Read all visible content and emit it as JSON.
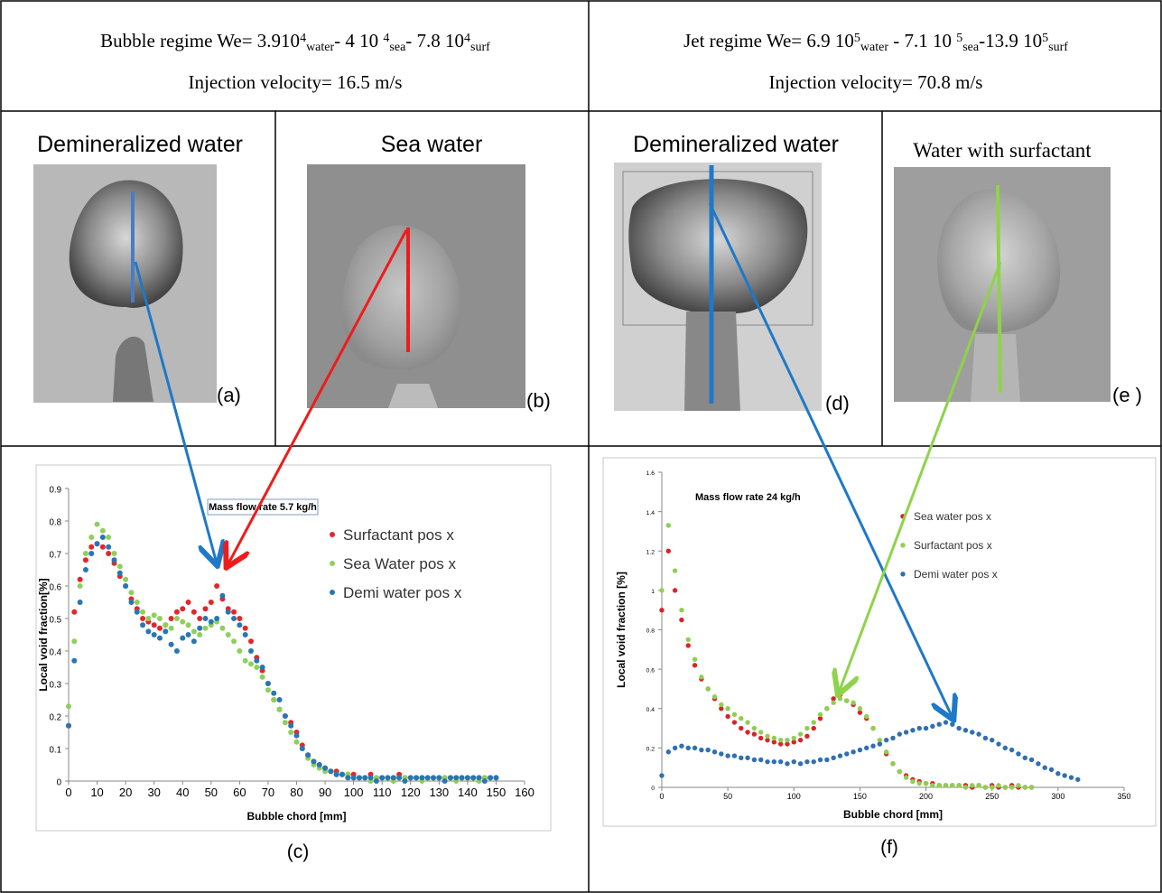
{
  "header": {
    "left": {
      "line1": [
        {
          "text": "Bubble regime We= 3.910"
        },
        {
          "sup": "4"
        },
        {
          "sub": "water"
        },
        {
          "text": "- 4 10 "
        },
        {
          "sup": "4"
        },
        {
          "sub": "sea"
        },
        {
          "text": "- 7.8 10"
        },
        {
          "sup": "4"
        },
        {
          "sub": "surf"
        }
      ],
      "line2": "Injection velocity= 16.5 m/s"
    },
    "right": {
      "line1": [
        {
          "text": "Jet regime We= 6.9 10"
        },
        {
          "sup": "5"
        },
        {
          "sub": "water"
        },
        {
          "text": " - 7.1 10 "
        },
        {
          "sup": "5"
        },
        {
          "sub": "sea"
        },
        {
          "text": "-13.9 10"
        },
        {
          "sup": "5"
        },
        {
          "sub": "surf"
        }
      ],
      "line2": "Injection velocity= 70.8 m/s"
    }
  },
  "panels": [
    {
      "title": "Demineralized water",
      "label": "(a)"
    },
    {
      "title": "Sea water",
      "label": "(b)"
    },
    {
      "title": "Demineralized water",
      "label": "(d)"
    },
    {
      "title": "Water with surfactant",
      "label": "(e )"
    }
  ],
  "chart_data": [
    {
      "type": "scatter",
      "title": "Mass flow rate 5.7 kg/h",
      "xlabel": "Bubble chord [mm]",
      "ylabel": "Local void fraction[%]",
      "caption": "(c)",
      "xlim": [
        0,
        160
      ],
      "ylim": [
        0,
        0.9
      ],
      "xticks": [
        0,
        10,
        20,
        30,
        40,
        50,
        60,
        70,
        80,
        90,
        100,
        110,
        120,
        130,
        140,
        150,
        160
      ],
      "yticks": [
        0,
        0.1,
        0.2,
        0.3,
        0.4,
        0.5,
        0.6,
        0.7,
        0.8,
        0.9
      ],
      "x": [
        0,
        2,
        4,
        6,
        8,
        10,
        12,
        14,
        16,
        18,
        20,
        22,
        24,
        26,
        28,
        30,
        32,
        34,
        36,
        38,
        40,
        42,
        44,
        46,
        48,
        50,
        52,
        54,
        56,
        58,
        60,
        62,
        64,
        66,
        68,
        70,
        72,
        74,
        76,
        78,
        80,
        82,
        84,
        86,
        88,
        90,
        92,
        94,
        96,
        98,
        100,
        102,
        104,
        106,
        108,
        110,
        112,
        114,
        116,
        118,
        120,
        122,
        124,
        126,
        128,
        130,
        132,
        134,
        136,
        138,
        140,
        142,
        144,
        146,
        148,
        150
      ],
      "series": [
        {
          "name": "Surfactant pos x",
          "color": "#e3262b",
          "values": [
            0.17,
            0.52,
            0.62,
            0.68,
            0.72,
            0.73,
            0.72,
            0.7,
            0.67,
            0.63,
            0.6,
            0.56,
            0.53,
            0.5,
            0.49,
            0.48,
            0.47,
            0.48,
            0.5,
            0.52,
            0.53,
            0.55,
            0.52,
            0.5,
            0.53,
            0.55,
            0.6,
            0.56,
            0.53,
            0.52,
            0.5,
            0.47,
            0.43,
            0.38,
            0.34,
            0.3,
            0.25,
            0.22,
            0.2,
            0.18,
            0.15,
            0.11,
            0.08,
            0.06,
            0.05,
            0.04,
            0.03,
            0.03,
            0.02,
            0.02,
            0.02,
            0.01,
            0.01,
            0.02,
            0.01,
            0.01,
            0.01,
            0.01,
            0.02,
            0.01,
            0.01,
            0.01,
            0.01,
            0.01,
            0.01,
            0.01,
            0.01,
            0.01,
            0.01,
            0.01,
            0.01,
            0.01,
            0.01,
            0.01,
            0.01,
            0.01
          ]
        },
        {
          "name": "Sea Water pos x",
          "color": "#8fcf5c",
          "values": [
            0.23,
            0.43,
            0.6,
            0.7,
            0.75,
            0.79,
            0.77,
            0.75,
            0.7,
            0.66,
            0.62,
            0.58,
            0.55,
            0.52,
            0.5,
            0.51,
            0.5,
            0.48,
            0.47,
            0.5,
            0.49,
            0.48,
            0.46,
            0.45,
            0.47,
            0.48,
            0.49,
            0.47,
            0.45,
            0.43,
            0.4,
            0.37,
            0.36,
            0.35,
            0.32,
            0.28,
            0.25,
            0.22,
            0.18,
            0.15,
            0.12,
            0.1,
            0.07,
            0.05,
            0.04,
            0.03,
            0.03,
            0.02,
            0.02,
            0.02,
            0.01,
            0.01,
            0.01,
            0,
            0.01,
            0.01,
            0.01,
            0,
            0.01,
            0.01,
            0.01,
            0.01,
            0,
            0.01,
            0.01,
            0.01,
            0.01,
            0.01,
            0,
            0.01,
            0.01,
            0.01,
            0,
            0.01,
            0.01,
            0.01
          ]
        },
        {
          "name": "Demi water pos x",
          "color": "#2777b3",
          "values": [
            0.17,
            0.37,
            0.55,
            0.65,
            0.7,
            0.73,
            0.75,
            0.72,
            0.68,
            0.64,
            0.6,
            0.55,
            0.52,
            0.48,
            0.46,
            0.45,
            0.44,
            0.46,
            0.42,
            0.4,
            0.44,
            0.45,
            0.43,
            0.47,
            0.5,
            0.49,
            0.5,
            0.57,
            0.52,
            0.5,
            0.48,
            0.45,
            0.4,
            0.37,
            0.35,
            0.3,
            0.27,
            0.25,
            0.2,
            0.17,
            0.14,
            0.1,
            0.08,
            0.06,
            0.05,
            0.04,
            0.03,
            0.02,
            0.02,
            0.01,
            0.01,
            0.01,
            0.01,
            0.01,
            0,
            0.01,
            0.01,
            0.01,
            0.01,
            0,
            0.01,
            0.01,
            0.01,
            0.01,
            0.01,
            0.01,
            0,
            0.01,
            0.01,
            0.01,
            0.01,
            0.01,
            0.01,
            0,
            0.01,
            0.01
          ]
        }
      ]
    },
    {
      "type": "scatter",
      "title": "Mass flow rate 24 kg/h",
      "xlabel": "Bubble chord [mm]",
      "ylabel": "Local void fraction [%]",
      "caption": "(f)",
      "xlim": [
        0,
        350
      ],
      "ylim": [
        0,
        1.6
      ],
      "xticks": [
        0,
        50,
        100,
        150,
        200,
        250,
        300,
        350
      ],
      "yticks": [
        0,
        0.2,
        0.4,
        0.6,
        0.8,
        1,
        1.2,
        1.4,
        1.6
      ],
      "series": [
        {
          "name": "Sea water pos x",
          "color": "#d9232a",
          "x": [
            0,
            5,
            10,
            15,
            20,
            25,
            30,
            35,
            40,
            45,
            50,
            55,
            60,
            65,
            70,
            75,
            80,
            85,
            90,
            95,
            100,
            105,
            110,
            115,
            120,
            125,
            130,
            135,
            140,
            145,
            150,
            155,
            160,
            165,
            170,
            175,
            180,
            185,
            190,
            195,
            200,
            205,
            210,
            215,
            220,
            225,
            230,
            235,
            240,
            245,
            250,
            255,
            260,
            265,
            270,
            275,
            280
          ],
          "values": [
            0.9,
            1.2,
            1.0,
            0.85,
            0.72,
            0.62,
            0.55,
            0.5,
            0.45,
            0.4,
            0.36,
            0.33,
            0.3,
            0.28,
            0.27,
            0.25,
            0.24,
            0.23,
            0.22,
            0.22,
            0.23,
            0.24,
            0.26,
            0.3,
            0.35,
            0.4,
            0.45,
            0.47,
            0.44,
            0.42,
            0.38,
            0.35,
            0.3,
            0.22,
            0.17,
            0.12,
            0.08,
            0.06,
            0.04,
            0.03,
            0.02,
            0.02,
            0.01,
            0.01,
            0.01,
            0.01,
            0.01,
            0,
            0.01,
            0,
            0.01,
            0,
            0,
            0.01,
            0,
            0,
            0
          ]
        },
        {
          "name": "Surfactant pos x",
          "color": "#8fcf4f",
          "x": [
            0,
            5,
            10,
            15,
            20,
            25,
            30,
            35,
            40,
            45,
            50,
            55,
            60,
            65,
            70,
            75,
            80,
            85,
            90,
            95,
            100,
            105,
            110,
            115,
            120,
            125,
            130,
            135,
            140,
            145,
            150,
            155,
            160,
            165,
            170,
            175,
            180,
            185,
            190,
            195,
            200,
            205,
            210,
            215,
            220,
            225,
            230,
            235,
            240,
            245,
            250,
            255,
            260,
            265,
            270,
            275,
            280
          ],
          "values": [
            1.0,
            1.33,
            1.1,
            0.9,
            0.75,
            0.65,
            0.56,
            0.5,
            0.46,
            0.42,
            0.4,
            0.37,
            0.35,
            0.33,
            0.3,
            0.28,
            0.26,
            0.25,
            0.24,
            0.24,
            0.25,
            0.27,
            0.3,
            0.33,
            0.37,
            0.4,
            0.43,
            0.45,
            0.44,
            0.43,
            0.4,
            0.36,
            0.3,
            0.24,
            0.18,
            0.12,
            0.08,
            0.05,
            0.03,
            0.02,
            0.02,
            0.01,
            0.01,
            0.01,
            0.01,
            0.01,
            0,
            0.01,
            0.01,
            0,
            0,
            0.01,
            0,
            0,
            0.01,
            0,
            0
          ]
        },
        {
          "name": "Demi water pos x",
          "color": "#2f6fb5",
          "x": [
            0,
            5,
            10,
            15,
            20,
            25,
            30,
            35,
            40,
            45,
            50,
            55,
            60,
            65,
            70,
            75,
            80,
            85,
            90,
            95,
            100,
            105,
            110,
            115,
            120,
            125,
            130,
            135,
            140,
            145,
            150,
            155,
            160,
            165,
            170,
            175,
            180,
            185,
            190,
            195,
            200,
            205,
            210,
            215,
            220,
            225,
            230,
            235,
            240,
            245,
            250,
            255,
            260,
            265,
            270,
            275,
            280,
            285,
            290,
            295,
            300,
            305,
            310,
            315
          ],
          "values": [
            0.06,
            0.18,
            0.2,
            0.21,
            0.2,
            0.2,
            0.19,
            0.19,
            0.18,
            0.17,
            0.16,
            0.16,
            0.15,
            0.15,
            0.14,
            0.14,
            0.13,
            0.13,
            0.13,
            0.12,
            0.13,
            0.12,
            0.13,
            0.13,
            0.14,
            0.14,
            0.15,
            0.16,
            0.17,
            0.18,
            0.19,
            0.2,
            0.21,
            0.22,
            0.24,
            0.25,
            0.27,
            0.28,
            0.29,
            0.3,
            0.3,
            0.31,
            0.32,
            0.33,
            0.32,
            0.3,
            0.29,
            0.28,
            0.27,
            0.25,
            0.24,
            0.22,
            0.2,
            0.19,
            0.17,
            0.15,
            0.14,
            0.12,
            0.1,
            0.09,
            0.07,
            0.06,
            0.05,
            0.04
          ]
        }
      ]
    }
  ]
}
